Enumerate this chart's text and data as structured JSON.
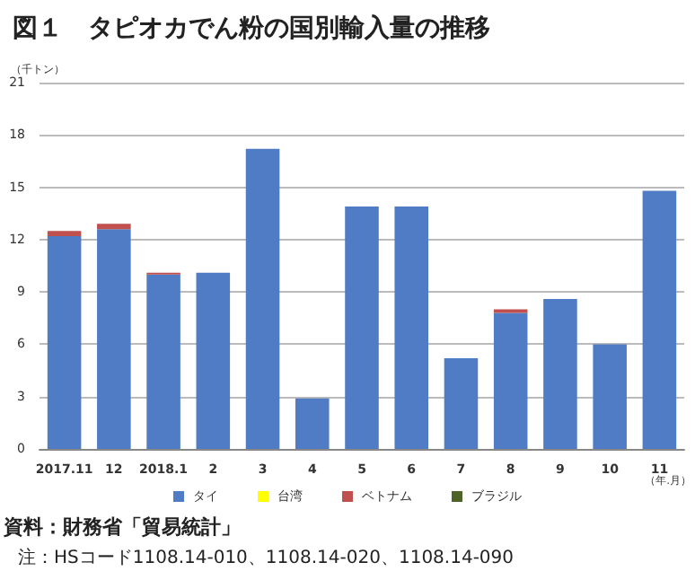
{
  "chart_data": {
    "type": "bar",
    "title": "図１　タピオカでん粉の国別輸入量の推移",
    "ylabel": "（千トン）",
    "xlabel": "（年.月）",
    "categories": [
      "2017.11",
      "12",
      "2018.1",
      "2",
      "3",
      "4",
      "5",
      "6",
      "7",
      "8",
      "9",
      "10",
      "11"
    ],
    "series": [
      {
        "name": "タイ",
        "color": "#4f7cc4",
        "values": [
          12.2,
          12.6,
          10.0,
          10.1,
          17.2,
          2.9,
          13.9,
          13.9,
          5.2,
          7.8,
          8.6,
          6.0,
          14.8
        ]
      },
      {
        "name": "台湾",
        "color": "#ffff00",
        "values": [
          0,
          0,
          0,
          0,
          0,
          0,
          0,
          0,
          0,
          0,
          0,
          0,
          0
        ]
      },
      {
        "name": "ベトナム",
        "color": "#c0504d",
        "values": [
          0.3,
          0.3,
          0.1,
          0,
          0,
          0,
          0,
          0,
          0,
          0.2,
          0,
          0,
          0
        ]
      },
      {
        "name": "ブラジル",
        "color": "#4f6228",
        "values": [
          0,
          0,
          0,
          0,
          0,
          0,
          0,
          0,
          0,
          0,
          0,
          0,
          0
        ]
      }
    ],
    "stacked": true,
    "ylim": [
      0,
      21
    ],
    "yticks": [
      0,
      3,
      6,
      9,
      12,
      15,
      18,
      21
    ],
    "grid": "y",
    "legend": "bottom",
    "annotations": [
      "資料：財務省「貿易統計」",
      "注：HSコード1108.14-010、1108.14-020、1108.14-090"
    ]
  }
}
